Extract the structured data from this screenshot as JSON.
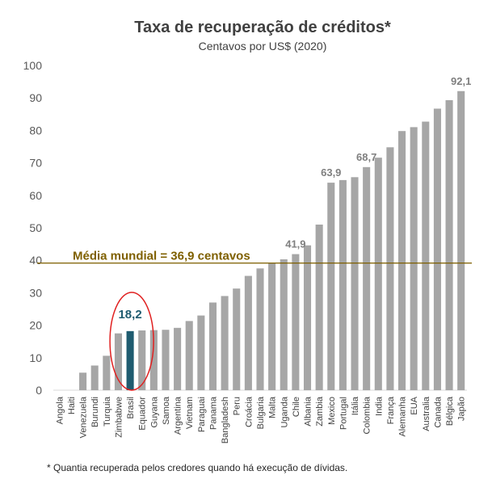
{
  "chart_data": {
    "type": "bar",
    "title": "Taxa de recuperação de créditos*",
    "subtitle": "Centavos por US$ (2020)",
    "footnote": "* Quantia recuperada pelos credores quando há execução de dívidas.",
    "ylim": [
      0,
      100
    ],
    "yticks": [
      0,
      10,
      20,
      30,
      40,
      50,
      60,
      70,
      80,
      90,
      100
    ],
    "grid": false,
    "categories": [
      "Angola",
      "Haiti",
      "Venezuela",
      "Burundi",
      "Turquia",
      "Zimbabwe",
      "Brasil",
      "Equador",
      "Guyana",
      "Samoa",
      "Argentina",
      "Vietnam",
      "Paraguai",
      "Panama",
      "Bangladesh",
      "Peru",
      "Croácia",
      "Bulgaria",
      "Malta",
      "Uganda",
      "Chile",
      "Albania",
      "Zambia",
      "Mexico",
      "Portugal",
      "Itália",
      "Colombia",
      "India",
      "França",
      "Alemanha",
      "EUA",
      "Australia",
      "Canada",
      "Bélgica",
      "Japão"
    ],
    "values": [
      0,
      0,
      5.4,
      7.6,
      10.6,
      17.5,
      18.2,
      18.4,
      18.5,
      18.6,
      19.2,
      21.3,
      23,
      27,
      29,
      31.3,
      35.2,
      37.5,
      39.2,
      40.3,
      41.9,
      44.6,
      51,
      63.9,
      64.7,
      65.6,
      68.7,
      71.6,
      74.8,
      79.8,
      81,
      82.7,
      86.7,
      89.3,
      92.1
    ],
    "highlight": "Brasil",
    "data_labels": [
      {
        "category": "Brasil",
        "text": "18,2"
      },
      {
        "category": "Chile",
        "text": "41,9"
      },
      {
        "category": "Mexico",
        "text": "63,9"
      },
      {
        "category": "Colombia",
        "text": "68,7"
      },
      {
        "category": "Japão",
        "text": "92,1"
      }
    ],
    "reference_line": {
      "value": 36.9,
      "label": "Média mundial = 36,9 centavos"
    },
    "colors": {
      "bar": "#a6a6a6",
      "highlight_bar": "#1f5c70",
      "reference_line": "#7f6000",
      "highlight_circle": "#e02020"
    }
  }
}
